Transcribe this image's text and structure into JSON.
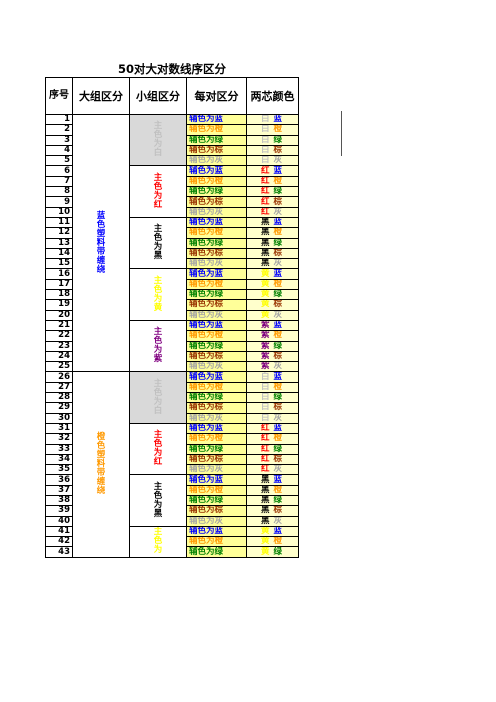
{
  "title": "50对大对数线序区分",
  "headers": [
    "序号",
    "大组区分",
    "小组区分",
    "每对区分",
    "两芯颜色"
  ],
  "colors": {
    "蓝": "#0000ff",
    "橙": "#ff9900",
    "绿": "#008000",
    "棕": "#993300",
    "灰": "#a6a6a6",
    "白": "#c0c0c0",
    "红": "#ff0000",
    "黑": "#000000",
    "黄": "#ffff00",
    "紫": "#800080"
  },
  "groups": [
    {
      "label": "蓝色塑料带缠绕",
      "color": "#0000ff",
      "start": 1,
      "count": 25
    },
    {
      "label": "橙色塑料带缠绕",
      "color": "#ff9900",
      "start": 26,
      "count": 18
    }
  ],
  "subgroups": [
    {
      "label": "主色为白",
      "color": "#c0c0c0",
      "bg": "#d9d9d9",
      "count": 5
    },
    {
      "label": "主色为红",
      "color": "#ff0000",
      "bg": "#ffffff",
      "count": 5
    },
    {
      "label": "主色为黑",
      "color": "#000000",
      "bg": "#ffffff",
      "count": 5
    },
    {
      "label": "主色为黄",
      "color": "#ffff00",
      "bg": "#ffffff",
      "count": 5
    },
    {
      "label": "主色为紫",
      "color": "#800080",
      "bg": "#ffffff",
      "count": 5
    },
    {
      "label": "主色为白",
      "color": "#c0c0c0",
      "bg": "#d9d9d9",
      "count": 5
    },
    {
      "label": "主色为红",
      "color": "#ff0000",
      "bg": "#ffffff",
      "count": 5
    },
    {
      "label": "主色为黑",
      "color": "#000000",
      "bg": "#ffffff",
      "count": 5
    },
    {
      "label": "主色为",
      "color": "#ffff00",
      "bg": "#ffffff",
      "count": 3
    }
  ],
  "pairs": [
    "辅色为蓝",
    "辅色为橙",
    "辅色为绿",
    "辅色为棕",
    "辅色为灰"
  ],
  "pair_colors": [
    "蓝",
    "橙",
    "绿",
    "棕",
    "灰"
  ],
  "mains": [
    "白",
    "红",
    "黑",
    "黄",
    "紫"
  ],
  "row_count": 43
}
